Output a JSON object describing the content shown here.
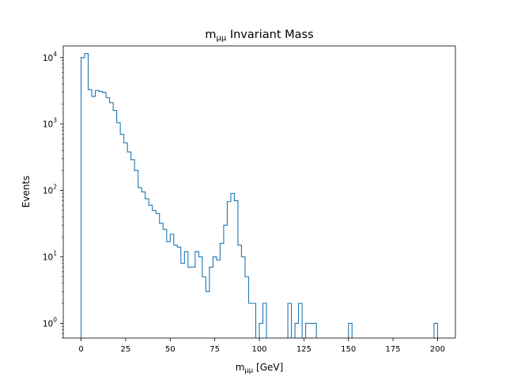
{
  "chart_data": {
    "type": "histogram-step",
    "title": "m",
    "title_sub": "μμ",
    "title_suffix": " Invariant Mass",
    "xlabel": "m",
    "xlabel_sub": "μμ",
    "xlabel_suffix": " [GeV]",
    "ylabel": "Events",
    "y_scale": "log",
    "xlim": [
      -10,
      210
    ],
    "ylim": [
      0.6,
      15000
    ],
    "x_ticks": [
      "0",
      "25",
      "50",
      "75",
      "100",
      "125",
      "150",
      "175",
      "200"
    ],
    "y_ticks": [
      {
        "base": "10",
        "exp": "0"
      },
      {
        "base": "10",
        "exp": "1"
      },
      {
        "base": "10",
        "exp": "2"
      },
      {
        "base": "10",
        "exp": "3"
      },
      {
        "base": "10",
        "exp": "4"
      }
    ],
    "grid": false,
    "bin_edges_start": 0,
    "bin_width": 2,
    "line_color": "#1f77b4",
    "counts": [
      10000,
      11500,
      3300,
      2600,
      3200,
      3100,
      3000,
      2500,
      2100,
      1600,
      1050,
      700,
      520,
      380,
      290,
      200,
      110,
      95,
      75,
      60,
      50,
      45,
      32,
      26,
      17,
      22,
      15,
      14,
      8,
      12,
      7,
      7,
      12,
      10,
      5,
      3,
      7,
      10,
      9,
      16,
      30,
      68,
      90,
      70,
      15,
      10,
      5,
      2,
      2,
      0,
      1,
      2,
      0,
      0,
      0,
      0,
      0,
      0,
      2,
      0,
      1,
      2,
      0,
      1,
      1,
      1,
      0,
      0,
      0,
      0,
      0,
      0,
      0,
      0,
      0,
      1,
      0,
      0,
      0,
      0,
      0,
      0,
      0,
      0,
      0,
      0,
      0,
      0,
      0,
      0,
      0,
      0,
      0,
      0,
      0,
      0,
      0,
      0,
      0,
      1
    ]
  }
}
